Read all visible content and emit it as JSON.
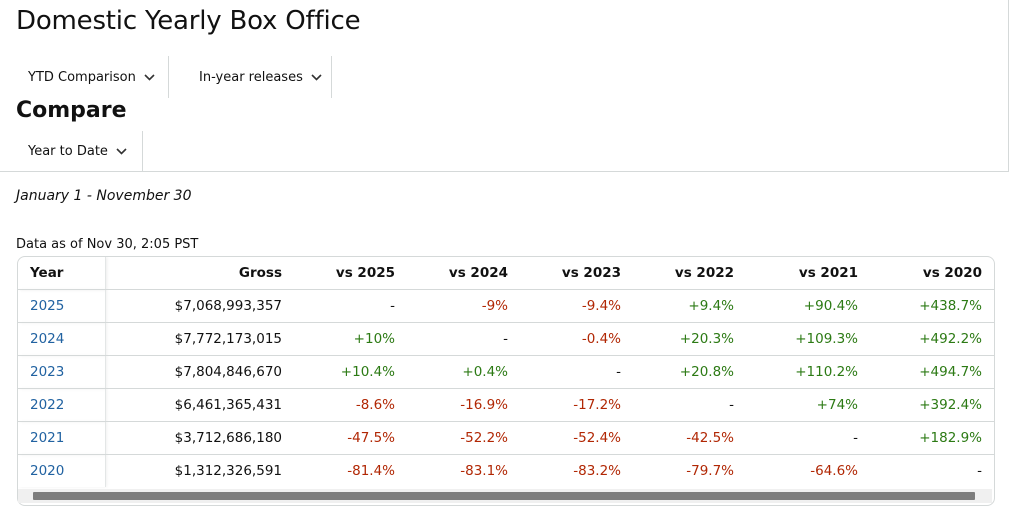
{
  "page": {
    "title": "Domestic Yearly Box Office",
    "section_title": "Compare",
    "date_range": "January 1 - November 30",
    "data_as_of": "Data as of Nov 30, 2:05 PST"
  },
  "filters": {
    "comparison": "YTD Comparison",
    "releases": "In-year releases",
    "compare_period": "Year to Date"
  },
  "table": {
    "headers": [
      "Year",
      "Gross",
      "vs 2025",
      "vs 2024",
      "vs 2023",
      "vs 2022",
      "vs 2021",
      "vs 2020"
    ],
    "rows": [
      {
        "year": "2025",
        "gross": "$7,068,993,357",
        "cells": [
          "-",
          "-9%",
          "-9.4%",
          "+9.4%",
          "+90.4%",
          "+438.7%"
        ]
      },
      {
        "year": "2024",
        "gross": "$7,772,173,015",
        "cells": [
          "+10%",
          "-",
          "-0.4%",
          "+20.3%",
          "+109.3%",
          "+492.2%"
        ]
      },
      {
        "year": "2023",
        "gross": "$7,804,846,670",
        "cells": [
          "+10.4%",
          "+0.4%",
          "-",
          "+20.8%",
          "+110.2%",
          "+494.7%"
        ]
      },
      {
        "year": "2022",
        "gross": "$6,461,365,431",
        "cells": [
          "-8.6%",
          "-16.9%",
          "-17.2%",
          "-",
          "+74%",
          "+392.4%"
        ]
      },
      {
        "year": "2021",
        "gross": "$3,712,686,180",
        "cells": [
          "-47.5%",
          "-52.2%",
          "-52.4%",
          "-42.5%",
          "-",
          "+182.9%"
        ]
      },
      {
        "year": "2020",
        "gross": "$1,312,326,591",
        "cells": [
          "-81.4%",
          "-83.1%",
          "-83.2%",
          "-79.7%",
          "-64.6%",
          "-"
        ]
      }
    ]
  },
  "colors": {
    "positive": "#2c7a14",
    "negative": "#b12704",
    "link": "#2162a1",
    "border": "#d5d9d9"
  }
}
